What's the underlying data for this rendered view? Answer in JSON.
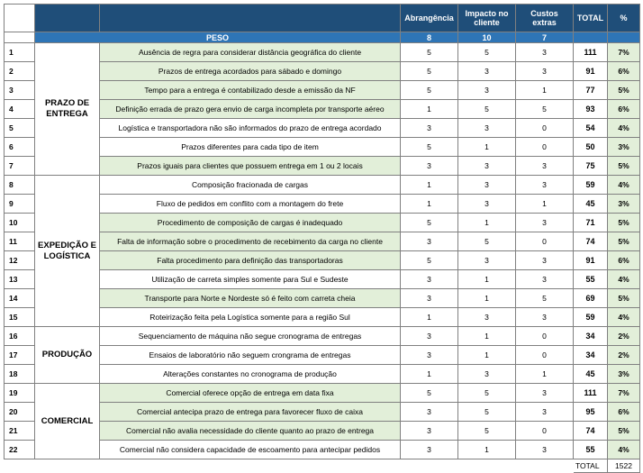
{
  "headers": {
    "abrangencia": "Abrangência",
    "impacto": "Impacto no cliente",
    "custos": "Custos extras",
    "total": "TOTAL",
    "pct": "%"
  },
  "peso": {
    "label": "PESO",
    "abrangencia": "8",
    "impacto": "10",
    "custos": "7"
  },
  "groups": [
    {
      "name": "PRAZO DE ENTREGA",
      "rows": [
        {
          "n": "1",
          "desc": "Ausência de regra para considerar distância geográfica do cliente",
          "a": "5",
          "i": "5",
          "c": "3",
          "t": "111",
          "p": "7%",
          "hl": true
        },
        {
          "n": "2",
          "desc": "Prazos de entrega acordados para sábado e domingo",
          "a": "5",
          "i": "3",
          "c": "3",
          "t": "91",
          "p": "6%",
          "hl": true
        },
        {
          "n": "3",
          "desc": "Tempo para a entrega é contabilizado desde a emissão da NF",
          "a": "5",
          "i": "3",
          "c": "1",
          "t": "77",
          "p": "5%",
          "hl": true
        },
        {
          "n": "4",
          "desc": "Definição errada de prazo gera envio de carga incompleta por transporte aéreo",
          "a": "1",
          "i": "5",
          "c": "5",
          "t": "93",
          "p": "6%",
          "hl": true
        },
        {
          "n": "5",
          "desc": "Logística e transportadora não são informados do prazo de entrega acordado",
          "a": "3",
          "i": "3",
          "c": "0",
          "t": "54",
          "p": "4%",
          "hl": false
        },
        {
          "n": "6",
          "desc": "Prazos diferentes para cada tipo de item",
          "a": "5",
          "i": "1",
          "c": "0",
          "t": "50",
          "p": "3%",
          "hl": false
        },
        {
          "n": "7",
          "desc": "Prazos iguais para clientes que possuem entrega em 1 ou 2 locais",
          "a": "3",
          "i": "3",
          "c": "3",
          "t": "75",
          "p": "5%",
          "hl": true
        }
      ]
    },
    {
      "name": "EXPEDIÇÃO E LOGÍSTICA",
      "rows": [
        {
          "n": "8",
          "desc": "Composição fracionada de cargas",
          "a": "1",
          "i": "3",
          "c": "3",
          "t": "59",
          "p": "4%",
          "hl": false
        },
        {
          "n": "9",
          "desc": "Fluxo de pedidos em conflito com a montagem do frete",
          "a": "1",
          "i": "3",
          "c": "1",
          "t": "45",
          "p": "3%",
          "hl": false
        },
        {
          "n": "10",
          "desc": "Procedimento de composição de cargas é inadequado",
          "a": "5",
          "i": "1",
          "c": "3",
          "t": "71",
          "p": "5%",
          "hl": true
        },
        {
          "n": "11",
          "desc": "Falta de informação sobre o procedimento de recebimento da carga no cliente",
          "a": "3",
          "i": "5",
          "c": "0",
          "t": "74",
          "p": "5%",
          "hl": true
        },
        {
          "n": "12",
          "desc": "Falta procedimento para definição das transportadoras",
          "a": "5",
          "i": "3",
          "c": "3",
          "t": "91",
          "p": "6%",
          "hl": true
        },
        {
          "n": "13",
          "desc": "Utilização de carreta simples somente para Sul e Sudeste",
          "a": "3",
          "i": "1",
          "c": "3",
          "t": "55",
          "p": "4%",
          "hl": false
        },
        {
          "n": "14",
          "desc": "Transporte para Norte e Nordeste só é feito com carreta cheia",
          "a": "3",
          "i": "1",
          "c": "5",
          "t": "69",
          "p": "5%",
          "hl": true
        },
        {
          "n": "15",
          "desc": "Roteirização feita pela Logística somente para a região Sul",
          "a": "1",
          "i": "3",
          "c": "3",
          "t": "59",
          "p": "4%",
          "hl": false
        }
      ]
    },
    {
      "name": "PRODUÇÃO",
      "rows": [
        {
          "n": "16",
          "desc": "Sequenciamento de máquina não segue cronograma de entregas",
          "a": "3",
          "i": "1",
          "c": "0",
          "t": "34",
          "p": "2%",
          "hl": false
        },
        {
          "n": "17",
          "desc": "Ensaios de laboratório não seguem crongrama de entregas",
          "a": "3",
          "i": "1",
          "c": "0",
          "t": "34",
          "p": "2%",
          "hl": false
        },
        {
          "n": "18",
          "desc": "Alterações constantes no cronograma de produção",
          "a": "1",
          "i": "3",
          "c": "1",
          "t": "45",
          "p": "3%",
          "hl": false
        }
      ]
    },
    {
      "name": "COMERCIAL",
      "rows": [
        {
          "n": "19",
          "desc": "Comercial oferece opção de entrega em data fixa",
          "a": "5",
          "i": "5",
          "c": "3",
          "t": "111",
          "p": "7%",
          "hl": true
        },
        {
          "n": "20",
          "desc": "Comercial antecipa prazo de entrega para favorecer fluxo de caixa",
          "a": "3",
          "i": "5",
          "c": "3",
          "t": "95",
          "p": "6%",
          "hl": true
        },
        {
          "n": "21",
          "desc": "Comercial não avalia necessidade do cliente quanto ao prazo de entrega",
          "a": "3",
          "i": "5",
          "c": "0",
          "t": "74",
          "p": "5%",
          "hl": true
        },
        {
          "n": "22",
          "desc": "Comercial não considera capacidade de escoamento para antecipar pedidos",
          "a": "3",
          "i": "1",
          "c": "3",
          "t": "55",
          "p": "4%",
          "hl": false
        }
      ]
    }
  ],
  "footer": {
    "label": "TOTAL",
    "value": "1522"
  }
}
